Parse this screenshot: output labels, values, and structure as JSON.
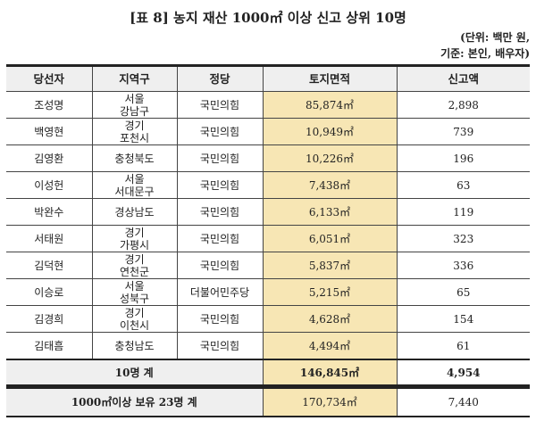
{
  "title": "[표 8] 농지 재산 1000㎡ 이상 신고 상위 10명",
  "unit_line1": "(단위: 백만 원,",
  "unit_line2": "기준: 본인, 배우자)",
  "headers": [
    "당선자",
    "지역구",
    "정당",
    "토지면적",
    "신고액"
  ],
  "rows": [
    {
      "name": "조성명",
      "region1": "서울",
      "region2": "강남구",
      "party": "국민의힘",
      "area": "85,874㎡",
      "amount": "2,898"
    },
    {
      "name": "백영현",
      "region1": "경기",
      "region2": "포천시",
      "party": "국민의힘",
      "area": "10,949㎡",
      "amount": "739"
    },
    {
      "name": "김영환",
      "region1": "충청북도",
      "region2": "",
      "party": "국민의힘",
      "area": "10,226㎡",
      "amount": "196"
    },
    {
      "name": "이성헌",
      "region1": "서울",
      "region2": "서대문구",
      "party": "국민의힘",
      "area": "7,438㎡",
      "amount": "63"
    },
    {
      "name": "박완수",
      "region1": "경상남도",
      "region2": "",
      "party": "국민의힘",
      "area": "6,133㎡",
      "amount": "119"
    },
    {
      "name": "서태원",
      "region1": "경기",
      "region2": "가평시",
      "party": "국민의힘",
      "area": "6,051㎡",
      "amount": "323"
    },
    {
      "name": "김덕현",
      "region1": "경기",
      "region2": "연천군",
      "party": "국민의힘",
      "area": "5,837㎡",
      "amount": "336"
    },
    {
      "name": "이승로",
      "region1": "서울",
      "region2": "성북구",
      "party": "더불어민주당",
      "area": "5,215㎡",
      "amount": "65"
    },
    {
      "name": "김경희",
      "region1": "경기",
      "region2": "이천시",
      "party": "국민의힘",
      "area": "4,628㎡",
      "amount": "154"
    },
    {
      "name": "김태흠",
      "region1": "충청남도",
      "region2": "",
      "party": "국민의힘",
      "area": "4,494㎡",
      "amount": "61"
    }
  ],
  "total": {
    "label": "10명 계",
    "area": "146,845㎡",
    "amount": "4,954"
  },
  "summary": {
    "label": "1000㎡이상 보유 23명 계",
    "area": "170,734㎡",
    "amount": "7,440"
  }
}
